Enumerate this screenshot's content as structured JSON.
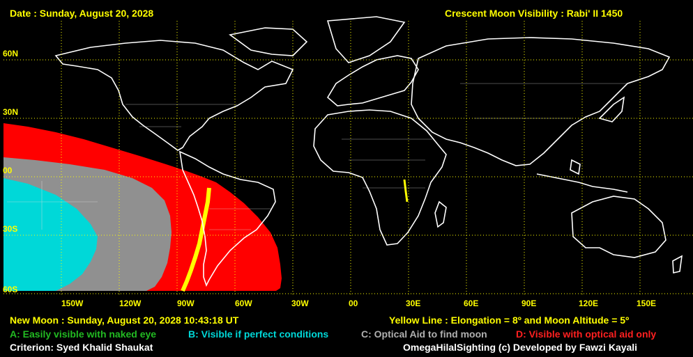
{
  "header": {
    "date_label": "Date : Sunday, August 20, 2028",
    "title": "Crescent Moon Visibility : Rabi' II  1450"
  },
  "map": {
    "lat_labels": [
      "60N",
      "30N",
      "00",
      "30S",
      "60S"
    ],
    "lon_labels": [
      "150W",
      "120W",
      "90W",
      "60W",
      "30W",
      "00",
      "30E",
      "60E",
      "90E",
      "120E",
      "150E"
    ],
    "grid_color": "#ffff00",
    "coastline_color": "#ffffff",
    "zone_colors": {
      "A": "#22bb22",
      "B": "#00d8d8",
      "C": "#909090",
      "D": "#ff0000",
      "line": "#ffff00"
    }
  },
  "footer": {
    "new_moon": "New Moon : Sunday, August 20, 2028  10:43:18  UT",
    "yellow_line": "Yellow Line : Elongation = 8º  and Moon Altitude = 5º",
    "legend_a": "A: Easily visible with naked eye",
    "legend_b": "B: Visible if perfect conditions",
    "legend_c": "C: Optical Aid to find moon",
    "legend_d": "D: Visible with optical aid only",
    "criterion": "Criterion: Syed Khalid Shaukat",
    "credit": "OmegaHilalSighting  (c)  Developed by Fawzi Kayali"
  }
}
